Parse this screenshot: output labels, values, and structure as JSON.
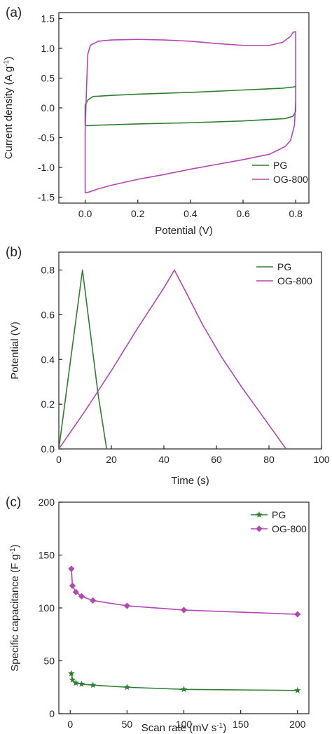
{
  "colors": {
    "PG": "#2e7d32",
    "OG-800": "#b246b2",
    "axis": "#222222"
  },
  "chart_data": [
    {
      "panel": "(a)",
      "type": "line",
      "xlabel": "Potential (V)",
      "ylabel": "Current density (A g",
      "ylabel_sup": "-1",
      "ylabel_end": ")",
      "xlim": [
        -0.1,
        0.85
      ],
      "ylim": [
        -1.6,
        1.6
      ],
      "xticks": [
        0.0,
        0.2,
        0.4,
        0.6,
        0.8
      ],
      "yticks": [
        -1.5,
        -1.0,
        -0.5,
        0.0,
        0.5,
        1.0,
        1.5
      ],
      "xtick_labels": [
        "0.0",
        "0.2",
        "0.4",
        "0.6",
        "0.8"
      ],
      "ytick_labels": [
        "-1.5",
        "-1.0",
        "-0.5",
        "0.0",
        "0.5",
        "1.0",
        "1.5"
      ],
      "grid": false,
      "legend_position": "bottom-right",
      "series": [
        {
          "name": "PG",
          "x": [
            0.0,
            0.0,
            0.01,
            0.03,
            0.1,
            0.2,
            0.4,
            0.6,
            0.75,
            0.79,
            0.8,
            0.8,
            0.79,
            0.76,
            0.6,
            0.4,
            0.2,
            0.05,
            0.01,
            0.0
          ],
          "y": [
            -0.29,
            0.05,
            0.13,
            0.19,
            0.21,
            0.23,
            0.26,
            0.3,
            0.33,
            0.35,
            0.36,
            -0.06,
            -0.14,
            -0.18,
            -0.22,
            -0.25,
            -0.27,
            -0.29,
            -0.3,
            -0.29
          ]
        },
        {
          "name": "OG-800",
          "x": [
            0.0,
            0.0,
            0.005,
            0.01,
            0.02,
            0.05,
            0.1,
            0.2,
            0.3,
            0.4,
            0.5,
            0.6,
            0.7,
            0.75,
            0.78,
            0.79,
            0.8,
            0.8,
            0.795,
            0.78,
            0.76,
            0.7,
            0.6,
            0.5,
            0.4,
            0.3,
            0.2,
            0.1,
            0.05,
            0.01,
            0.0
          ],
          "y": [
            -1.43,
            -0.4,
            0.3,
            0.9,
            1.05,
            1.12,
            1.14,
            1.15,
            1.14,
            1.12,
            1.08,
            1.05,
            1.05,
            1.1,
            1.2,
            1.27,
            1.28,
            0.1,
            -0.3,
            -0.55,
            -0.65,
            -0.78,
            -0.87,
            -0.95,
            -1.03,
            -1.12,
            -1.2,
            -1.3,
            -1.36,
            -1.42,
            -1.43
          ]
        }
      ]
    },
    {
      "panel": "(b)",
      "type": "line",
      "xlabel": "Time (s)",
      "ylabel": "Potential (V)",
      "xlim": [
        0,
        100
      ],
      "ylim": [
        0,
        0.88
      ],
      "xticks": [
        0,
        20,
        40,
        60,
        80,
        100
      ],
      "yticks": [
        0.0,
        0.2,
        0.4,
        0.6,
        0.8
      ],
      "xtick_labels": [
        "0",
        "20",
        "40",
        "60",
        "80",
        "100"
      ],
      "ytick_labels": [
        "0.0",
        "0.2",
        "0.4",
        "0.6",
        "0.8"
      ],
      "grid": false,
      "legend_position": "top-right",
      "series": [
        {
          "name": "PG",
          "x": [
            0,
            9,
            12,
            15,
            18.2
          ],
          "y": [
            0.0,
            0.8,
            0.52,
            0.24,
            0.0
          ]
        },
        {
          "name": "OG-800",
          "x": [
            0,
            10,
            20,
            30,
            40,
            44,
            48,
            55,
            62,
            70,
            78,
            86.5
          ],
          "y": [
            0.0,
            0.17,
            0.35,
            0.54,
            0.72,
            0.8,
            0.71,
            0.55,
            0.41,
            0.27,
            0.14,
            0.0
          ]
        }
      ]
    },
    {
      "panel": "(c)",
      "type": "line",
      "xlabel": "Scan rate (mV s",
      "xlabel_sup": "-1",
      "xlabel_end": ")",
      "ylabel": "Specific capacitance (F g",
      "ylabel_sup": "-1",
      "ylabel_end": ")",
      "xlim": [
        -10,
        210
      ],
      "ylim": [
        0,
        200
      ],
      "xticks": [
        0,
        50,
        100,
        150,
        200
      ],
      "yticks": [
        0,
        50,
        100,
        150,
        200
      ],
      "xtick_labels": [
        "0",
        "50",
        "100",
        "150",
        "200"
      ],
      "ytick_labels": [
        "0",
        "50",
        "100",
        "150",
        "200"
      ],
      "grid": false,
      "legend_position": "top-right",
      "series": [
        {
          "name": "PG",
          "marker": "star",
          "x": [
            1,
            2,
            5,
            10,
            20,
            50,
            100,
            200
          ],
          "y": [
            38,
            32,
            29,
            28,
            27,
            25,
            23,
            22
          ]
        },
        {
          "name": "OG-800",
          "marker": "diamond",
          "x": [
            1,
            2,
            5,
            10,
            20,
            50,
            100,
            200
          ],
          "y": [
            137,
            121,
            115,
            111,
            107,
            102,
            98,
            94
          ]
        }
      ]
    }
  ]
}
